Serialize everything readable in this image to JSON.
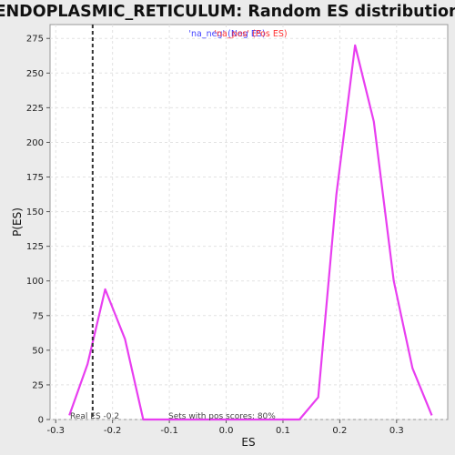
{
  "chart_data": {
    "type": "line",
    "title": "ENDOPLASMIC_RETICULUM: Random ES distribution",
    "xlabel": "ES",
    "ylabel": "P(ES)",
    "xlim": [
      -0.31,
      0.39
    ],
    "ylim": [
      0,
      285
    ],
    "x_ticks": [
      -0.3,
      -0.2,
      -0.1,
      0.0,
      0.1,
      0.2,
      0.3
    ],
    "x_tick_labels": [
      "-0.3",
      "-0.2",
      "-0.1",
      "0.0",
      "0.1",
      "0.2",
      "0.3"
    ],
    "y_ticks": [
      0,
      25,
      50,
      75,
      100,
      125,
      150,
      175,
      200,
      225,
      250,
      275
    ],
    "y_tick_labels": [
      "0",
      "25",
      "50",
      "75",
      "100",
      "125",
      "150",
      "175",
      "200",
      "225",
      "250",
      "275"
    ],
    "grid": true,
    "legend": {
      "placement": "top-center",
      "entries": [
        {
          "label": "'na_neg' (Neg ES)",
          "color": "#4444ff"
        },
        {
          "label": "'na_pos' (Pos ES)",
          "color": "#ff3333"
        }
      ]
    },
    "series": [
      {
        "color": "#e83ef0",
        "x": [
          -0.276,
          -0.244,
          -0.213,
          -0.178,
          -0.146,
          -0.113,
          -0.081,
          -0.048,
          -0.016,
          0.016,
          0.048,
          0.081,
          0.113,
          0.129,
          0.162,
          0.194,
          0.227,
          0.26,
          0.295,
          0.328,
          0.362
        ],
        "y": [
          3,
          40,
          94,
          58,
          0,
          0,
          0,
          0,
          0,
          0,
          0,
          0,
          0,
          0,
          16,
          162,
          270,
          215,
          100,
          37,
          3
        ]
      }
    ],
    "real_es": {
      "value": -0.235,
      "label": "Real ES -0.2"
    },
    "annotation": "Sets with pos scores: 80%"
  }
}
